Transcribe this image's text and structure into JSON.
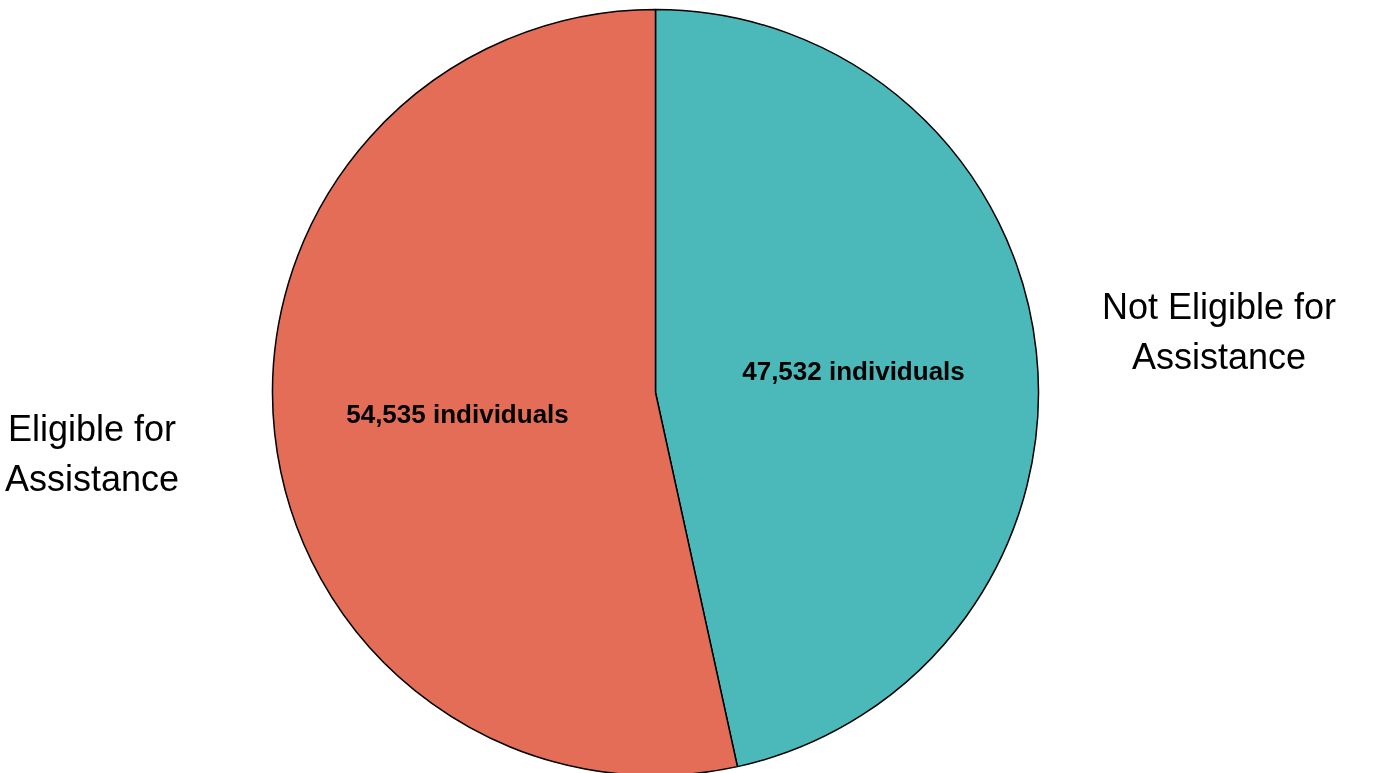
{
  "chart_data": {
    "type": "pie",
    "categories": [
      "Not Eligible for Assistance",
      "Eligible for Assistance"
    ],
    "values": [
      47532,
      54535
    ],
    "colors": [
      "#4bb8b9",
      "#e36d57"
    ],
    "value_labels": [
      "47,532 individuals",
      "54,535 individuals"
    ]
  }
}
